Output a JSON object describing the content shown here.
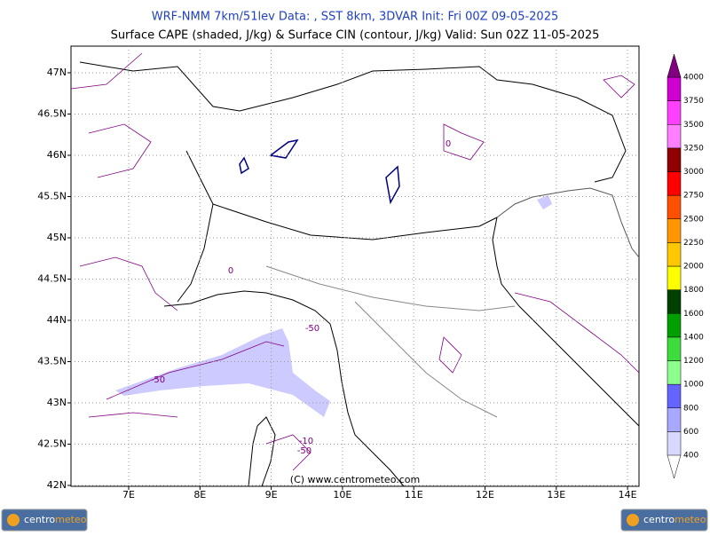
{
  "header": {
    "title": "WRF-NMM 7km/51lev   Data: , SST 8km, 3DVAR   Init: Fri 00Z 09-05-2025",
    "subtitle": "Surface CAPE (shaded, J/kg) & Surface CIN (contour, J/kg)   Valid: Sun 02Z 11-05-2025"
  },
  "map": {
    "lon_ticks": [
      {
        "value": 7,
        "label": "7E"
      },
      {
        "value": 8,
        "label": "8E"
      },
      {
        "value": 9,
        "label": "9E"
      },
      {
        "value": 10,
        "label": "10E"
      },
      {
        "value": 11,
        "label": "11E"
      },
      {
        "value": 12,
        "label": "12E"
      },
      {
        "value": 13,
        "label": "13E"
      },
      {
        "value": 14,
        "label": "14E"
      }
    ],
    "lat_ticks": [
      {
        "value": 47,
        "label": "47N"
      },
      {
        "value": 46.5,
        "label": "46.5N"
      },
      {
        "value": 46,
        "label": "46N"
      },
      {
        "value": 45.5,
        "label": "45.5N"
      },
      {
        "value": 45,
        "label": "45N"
      },
      {
        "value": 44.5,
        "label": "44.5N"
      },
      {
        "value": 44,
        "label": "44N"
      },
      {
        "value": 43.5,
        "label": "43.5N"
      },
      {
        "value": 43,
        "label": "43N"
      },
      {
        "value": 42.5,
        "label": "42.5N"
      },
      {
        "value": 42,
        "label": "42N"
      }
    ],
    "contour_labels": [
      "-50",
      "-50",
      "-50",
      "-10",
      "0",
      "0"
    ],
    "copyright": "(C) www.centrometeo.com"
  },
  "colorbar": {
    "levels": [
      400,
      600,
      800,
      1000,
      1200,
      1400,
      1600,
      1800,
      2000,
      2250,
      2500,
      2750,
      3000,
      3250,
      3500,
      3750,
      4000
    ],
    "colors": [
      "#d8d8ff",
      "#a8a8ff",
      "#6464ff",
      "#8cff8c",
      "#3cdc3c",
      "#00a000",
      "#004000",
      "#ffff00",
      "#ffc800",
      "#ff9600",
      "#ff5000",
      "#ff0000",
      "#900000",
      "#ff80ff",
      "#ff40ff",
      "#d000d0",
      "#800080"
    ]
  },
  "logo": {
    "part1": "centro",
    "part2": "meteo"
  }
}
